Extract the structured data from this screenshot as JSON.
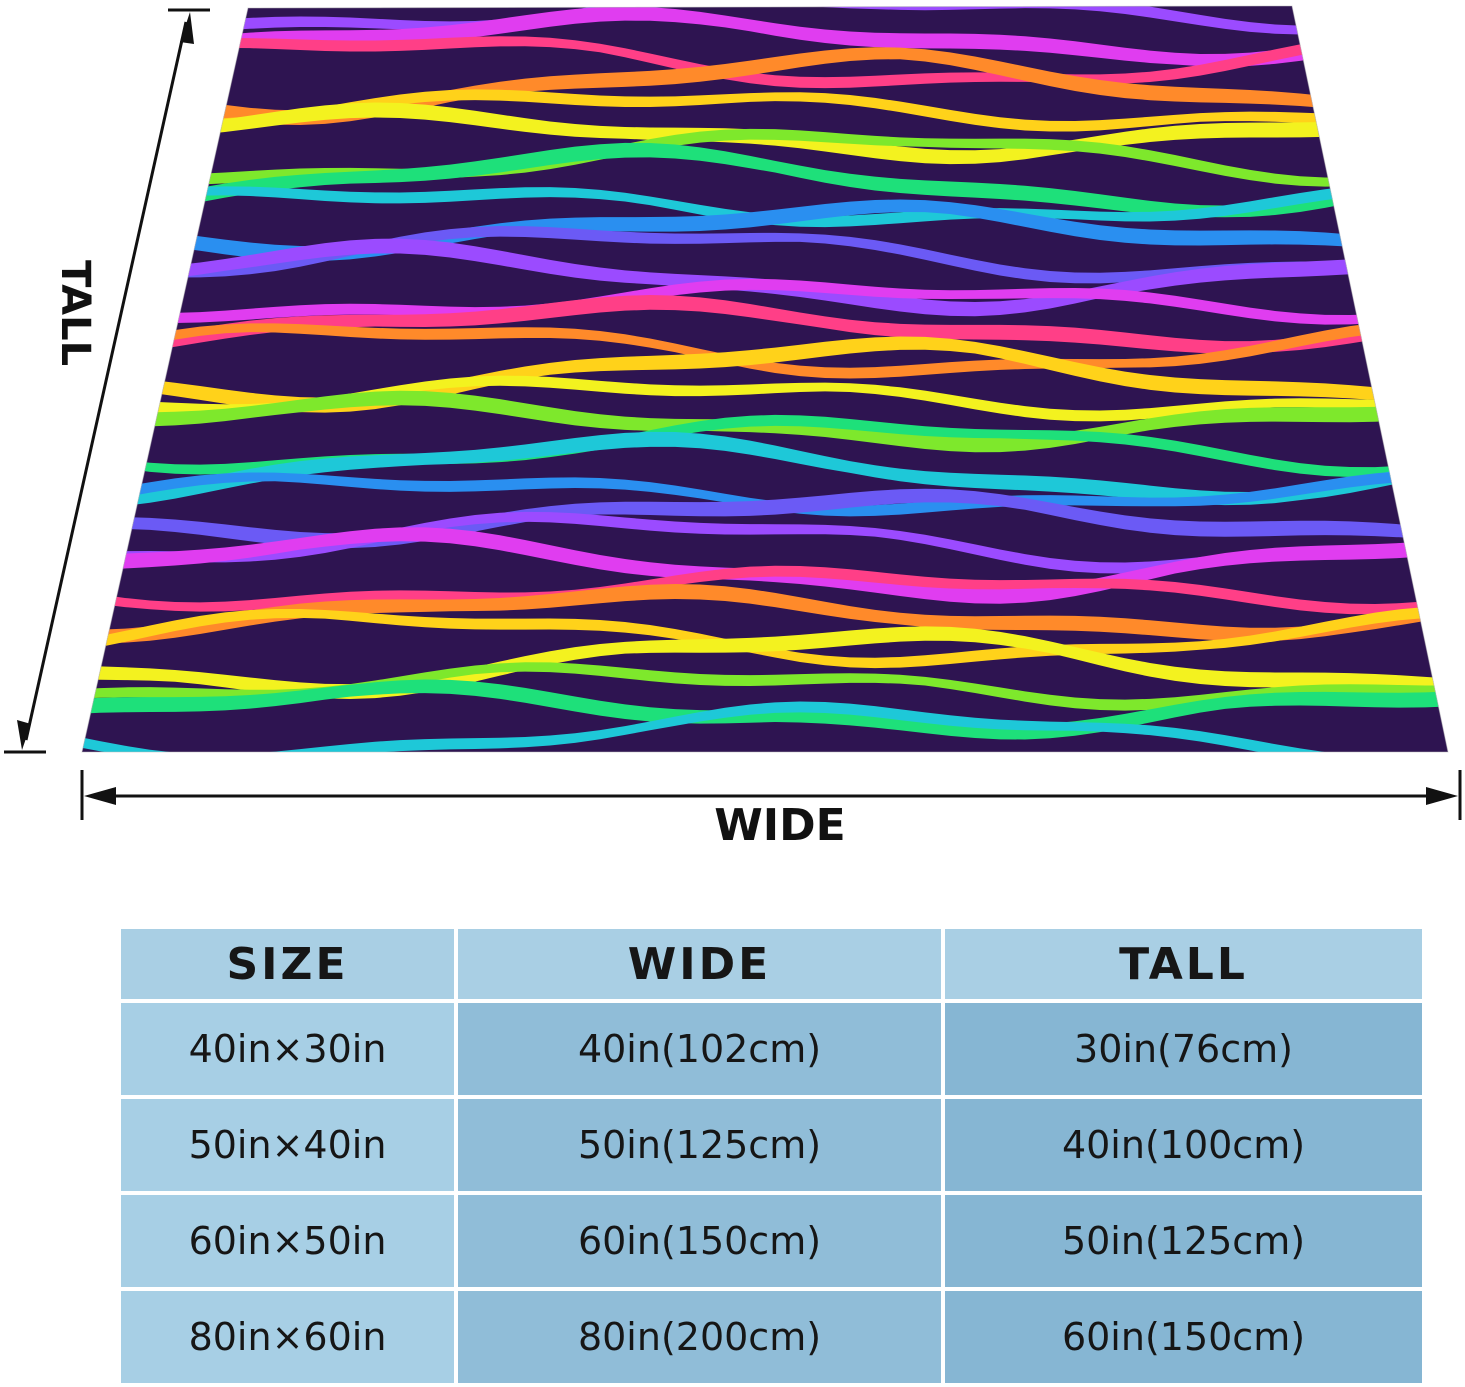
{
  "dimension_labels": {
    "tall": "TALL",
    "wide": "WIDE"
  },
  "blanket": {
    "pattern": "rainbow zebra stripes on dark purple",
    "base_color": "#2e1451",
    "stripe_colors": [
      "#9b4bff",
      "#e03df0",
      "#ff3f87",
      "#ff8a2a",
      "#ffd21a",
      "#f3f21f",
      "#7ee82c",
      "#1ee07a",
      "#1ec8d8",
      "#2a8ff0",
      "#6b5af5"
    ]
  },
  "size_table": {
    "headers": [
      "SIZE",
      "WIDE",
      "TALL"
    ],
    "rows": [
      [
        "40in×30in",
        "40in(102cm)",
        "30in(76cm)"
      ],
      [
        "50in×40in",
        "50in(125cm)",
        "40in(100cm)"
      ],
      [
        "60in×50in",
        "60in(150cm)",
        "50in(125cm)"
      ],
      [
        "80in×60in",
        "80in(200cm)",
        "60in(150cm)"
      ]
    ]
  }
}
